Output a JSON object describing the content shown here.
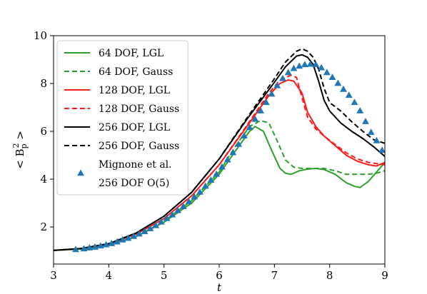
{
  "chart_data": {
    "type": "line",
    "xlabel": "t",
    "ylabel": "< B_p^2 >",
    "xlim": [
      3,
      9
    ],
    "ylim": [
      0.45,
      10
    ],
    "xticks": [
      3,
      4,
      5,
      6,
      7,
      8,
      9
    ],
    "yticks": [
      2,
      4,
      6,
      8,
      10
    ],
    "legend_position": "top-left",
    "series": [
      {
        "name": "64 DOF, LGL",
        "color": "#2ca02c",
        "style": "solid",
        "points": [
          [
            3.0,
            1.02
          ],
          [
            3.5,
            1.08
          ],
          [
            4.0,
            1.25
          ],
          [
            4.5,
            1.6
          ],
          [
            5.0,
            2.2
          ],
          [
            5.5,
            3.0
          ],
          [
            6.0,
            4.2
          ],
          [
            6.3,
            5.2
          ],
          [
            6.55,
            6.0
          ],
          [
            6.65,
            6.2
          ],
          [
            6.8,
            6.0
          ],
          [
            6.95,
            5.2
          ],
          [
            7.1,
            4.45
          ],
          [
            7.2,
            4.25
          ],
          [
            7.3,
            4.2
          ],
          [
            7.45,
            4.35
          ],
          [
            7.6,
            4.42
          ],
          [
            7.75,
            4.45
          ],
          [
            7.9,
            4.4
          ],
          [
            8.1,
            4.2
          ],
          [
            8.3,
            3.85
          ],
          [
            8.45,
            3.7
          ],
          [
            8.55,
            3.65
          ],
          [
            8.7,
            3.9
          ],
          [
            8.85,
            4.3
          ],
          [
            9.0,
            4.7
          ]
        ]
      },
      {
        "name": "64 DOF, Gauss",
        "color": "#2ca02c",
        "style": "dashed",
        "points": [
          [
            3.0,
            1.02
          ],
          [
            3.5,
            1.08
          ],
          [
            4.0,
            1.25
          ],
          [
            4.5,
            1.6
          ],
          [
            5.0,
            2.25
          ],
          [
            5.5,
            3.1
          ],
          [
            6.0,
            4.3
          ],
          [
            6.3,
            5.4
          ],
          [
            6.55,
            6.2
          ],
          [
            6.75,
            6.45
          ],
          [
            6.9,
            6.35
          ],
          [
            7.05,
            5.6
          ],
          [
            7.2,
            4.8
          ],
          [
            7.35,
            4.5
          ],
          [
            7.5,
            4.45
          ],
          [
            7.7,
            4.45
          ],
          [
            7.9,
            4.45
          ],
          [
            8.1,
            4.35
          ],
          [
            8.3,
            4.2
          ],
          [
            8.5,
            4.2
          ],
          [
            8.7,
            4.2
          ],
          [
            8.85,
            4.25
          ],
          [
            9.0,
            4.35
          ]
        ]
      },
      {
        "name": "128 DOF, LGL",
        "color": "#ff1a1a",
        "style": "solid",
        "points": [
          [
            3.0,
            1.02
          ],
          [
            3.5,
            1.1
          ],
          [
            4.0,
            1.3
          ],
          [
            4.5,
            1.7
          ],
          [
            5.0,
            2.35
          ],
          [
            5.5,
            3.3
          ],
          [
            6.0,
            4.6
          ],
          [
            6.5,
            6.2
          ],
          [
            6.9,
            7.5
          ],
          [
            7.1,
            8.0
          ],
          [
            7.25,
            8.15
          ],
          [
            7.35,
            8.1
          ],
          [
            7.5,
            7.6
          ],
          [
            7.6,
            6.8
          ],
          [
            7.75,
            6.2
          ],
          [
            7.9,
            5.8
          ],
          [
            8.1,
            5.4
          ],
          [
            8.3,
            5.0
          ],
          [
            8.5,
            4.75
          ],
          [
            8.7,
            4.6
          ],
          [
            8.85,
            4.55
          ],
          [
            9.0,
            4.7
          ]
        ]
      },
      {
        "name": "128 DOF, Gauss",
        "color": "#ff1a1a",
        "style": "dashed",
        "points": [
          [
            3.0,
            1.02
          ],
          [
            3.5,
            1.1
          ],
          [
            4.0,
            1.3
          ],
          [
            4.5,
            1.7
          ],
          [
            5.0,
            2.35
          ],
          [
            5.5,
            3.3
          ],
          [
            6.0,
            4.6
          ],
          [
            6.5,
            6.25
          ],
          [
            6.9,
            7.6
          ],
          [
            7.1,
            8.15
          ],
          [
            7.3,
            8.35
          ],
          [
            7.4,
            8.25
          ],
          [
            7.5,
            7.4
          ],
          [
            7.6,
            6.6
          ],
          [
            7.75,
            6.1
          ],
          [
            7.9,
            5.8
          ],
          [
            8.1,
            5.45
          ],
          [
            8.3,
            5.1
          ],
          [
            8.5,
            4.85
          ],
          [
            8.7,
            4.7
          ],
          [
            8.85,
            4.65
          ],
          [
            9.0,
            4.6
          ]
        ]
      },
      {
        "name": "256 DOF, LGL",
        "color": "#000000",
        "style": "solid",
        "points": [
          [
            3.0,
            1.02
          ],
          [
            3.5,
            1.1
          ],
          [
            4.0,
            1.3
          ],
          [
            4.5,
            1.75
          ],
          [
            5.0,
            2.45
          ],
          [
            5.5,
            3.45
          ],
          [
            6.0,
            4.85
          ],
          [
            6.5,
            6.5
          ],
          [
            7.0,
            8.05
          ],
          [
            7.2,
            8.7
          ],
          [
            7.4,
            9.15
          ],
          [
            7.5,
            9.2
          ],
          [
            7.6,
            9.1
          ],
          [
            7.7,
            8.8
          ],
          [
            7.8,
            8.1
          ],
          [
            7.9,
            7.3
          ],
          [
            8.0,
            6.85
          ],
          [
            8.2,
            6.35
          ],
          [
            8.4,
            6.0
          ],
          [
            8.6,
            5.7
          ],
          [
            8.8,
            5.35
          ],
          [
            9.0,
            4.95
          ]
        ]
      },
      {
        "name": "256 DOF, Gauss",
        "color": "#000000",
        "style": "dashed",
        "points": [
          [
            3.0,
            1.02
          ],
          [
            3.5,
            1.1
          ],
          [
            4.0,
            1.3
          ],
          [
            4.5,
            1.75
          ],
          [
            5.0,
            2.45
          ],
          [
            5.5,
            3.45
          ],
          [
            6.0,
            4.85
          ],
          [
            6.5,
            6.55
          ],
          [
            7.0,
            8.2
          ],
          [
            7.2,
            8.9
          ],
          [
            7.4,
            9.35
          ],
          [
            7.5,
            9.45
          ],
          [
            7.6,
            9.35
          ],
          [
            7.7,
            9.1
          ],
          [
            7.8,
            8.6
          ],
          [
            7.9,
            7.8
          ],
          [
            8.0,
            7.2
          ],
          [
            8.2,
            6.85
          ],
          [
            8.4,
            6.4
          ],
          [
            8.6,
            6.0
          ],
          [
            8.8,
            5.65
          ],
          [
            9.0,
            5.5
          ]
        ]
      },
      {
        "name": "Mignone et al.\n256 DOF O(5)",
        "color": "#1f77b4",
        "style": "markers",
        "points": [
          [
            3.4,
            1.05
          ],
          [
            3.55,
            1.08
          ],
          [
            3.65,
            1.12
          ],
          [
            3.75,
            1.15
          ],
          [
            3.85,
            1.2
          ],
          [
            3.95,
            1.25
          ],
          [
            4.05,
            1.3
          ],
          [
            4.15,
            1.37
          ],
          [
            4.25,
            1.45
          ],
          [
            4.35,
            1.52
          ],
          [
            4.45,
            1.6
          ],
          [
            4.55,
            1.7
          ],
          [
            4.65,
            1.8
          ],
          [
            4.75,
            1.92
          ],
          [
            4.85,
            2.05
          ],
          [
            4.95,
            2.2
          ],
          [
            5.05,
            2.35
          ],
          [
            5.15,
            2.5
          ],
          [
            5.25,
            2.68
          ],
          [
            5.35,
            2.85
          ],
          [
            5.45,
            3.05
          ],
          [
            5.55,
            3.25
          ],
          [
            5.65,
            3.45
          ],
          [
            5.75,
            3.7
          ],
          [
            5.85,
            3.95
          ],
          [
            5.95,
            4.2
          ],
          [
            6.05,
            4.5
          ],
          [
            6.15,
            4.8
          ],
          [
            6.25,
            5.1
          ],
          [
            6.35,
            5.45
          ],
          [
            6.45,
            5.8
          ],
          [
            6.55,
            6.15
          ],
          [
            6.65,
            6.5
          ],
          [
            6.75,
            6.85
          ],
          [
            6.85,
            7.2
          ],
          [
            6.95,
            7.55
          ],
          [
            7.05,
            7.9
          ],
          [
            7.15,
            8.2
          ],
          [
            7.25,
            8.45
          ],
          [
            7.35,
            8.62
          ],
          [
            7.45,
            8.72
          ],
          [
            7.55,
            8.78
          ],
          [
            7.65,
            8.8
          ],
          [
            7.75,
            8.78
          ],
          [
            7.85,
            8.65
          ],
          [
            7.95,
            8.45
          ],
          [
            8.05,
            8.25
          ],
          [
            8.15,
            8.0
          ],
          [
            8.25,
            7.75
          ],
          [
            8.35,
            7.5
          ],
          [
            8.45,
            7.2
          ],
          [
            8.55,
            6.85
          ],
          [
            8.65,
            6.4
          ],
          [
            8.75,
            5.95
          ],
          [
            8.85,
            5.6
          ],
          [
            8.95,
            5.2
          ]
        ]
      }
    ]
  }
}
